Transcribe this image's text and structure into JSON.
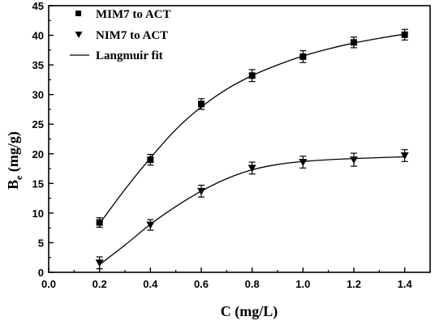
{
  "chart_data": {
    "type": "scatter",
    "xlabel": "C (mg/L)",
    "ylabel": "B",
    "ylabel_sub": "e",
    "ylabel_unit": " (mg/g)",
    "xlim": [
      0.0,
      1.5
    ],
    "ylim": [
      0,
      45
    ],
    "x_ticks": [
      0.0,
      0.2,
      0.4,
      0.6,
      0.8,
      1.0,
      1.2,
      1.4
    ],
    "x_tick_labels": [
      "0.0",
      "0.2",
      "0.4",
      "0.6",
      "0.8",
      "1.0",
      "1.2",
      "1.4"
    ],
    "y_ticks": [
      0,
      5,
      10,
      15,
      20,
      25,
      30,
      35,
      40,
      45
    ],
    "y_tick_labels": [
      "0",
      "5",
      "10",
      "15",
      "20",
      "25",
      "30",
      "35",
      "40",
      "45"
    ],
    "grid": false,
    "legend_position": "top-left",
    "series": [
      {
        "name": "MIM7 to ACT",
        "marker": "square",
        "x": [
          0.2,
          0.4,
          0.6,
          0.8,
          1.0,
          1.2,
          1.4
        ],
        "y": [
          8.4,
          19.0,
          28.4,
          33.2,
          36.4,
          38.8,
          40.1
        ],
        "error": [
          0.8,
          0.9,
          0.9,
          1.0,
          1.0,
          0.9,
          0.9
        ],
        "fit": [
          [
            0.2,
            8.2
          ],
          [
            0.3,
            14.0
          ],
          [
            0.4,
            19.3
          ],
          [
            0.5,
            24.1
          ],
          [
            0.6,
            27.9
          ],
          [
            0.7,
            30.9
          ],
          [
            0.8,
            33.2
          ],
          [
            0.9,
            35.0
          ],
          [
            1.0,
            36.5
          ],
          [
            1.1,
            37.7
          ],
          [
            1.2,
            38.7
          ],
          [
            1.3,
            39.5
          ],
          [
            1.4,
            40.2
          ]
        ]
      },
      {
        "name": "NIM7 to ACT",
        "marker": "triangle-down",
        "x": [
          0.2,
          0.4,
          0.6,
          0.8,
          1.0,
          1.2,
          1.4
        ],
        "y": [
          1.6,
          8.0,
          13.7,
          17.6,
          18.6,
          19.0,
          19.7
        ],
        "error": [
          1.0,
          0.9,
          1.0,
          1.0,
          1.0,
          1.1,
          1.0
        ],
        "fit": [
          [
            0.2,
            1.3
          ],
          [
            0.3,
            4.6
          ],
          [
            0.4,
            8.1
          ],
          [
            0.5,
            11.1
          ],
          [
            0.6,
            13.7
          ],
          [
            0.7,
            15.8
          ],
          [
            0.8,
            17.3
          ],
          [
            0.9,
            18.2
          ],
          [
            1.0,
            18.7
          ],
          [
            1.1,
            19.0
          ],
          [
            1.2,
            19.2
          ],
          [
            1.3,
            19.35
          ],
          [
            1.4,
            19.5
          ]
        ]
      }
    ],
    "fit_legend_label": "Langmuir fit",
    "colors": {
      "axis": "#000000",
      "marker": "#000000",
      "line": "#000000"
    }
  }
}
